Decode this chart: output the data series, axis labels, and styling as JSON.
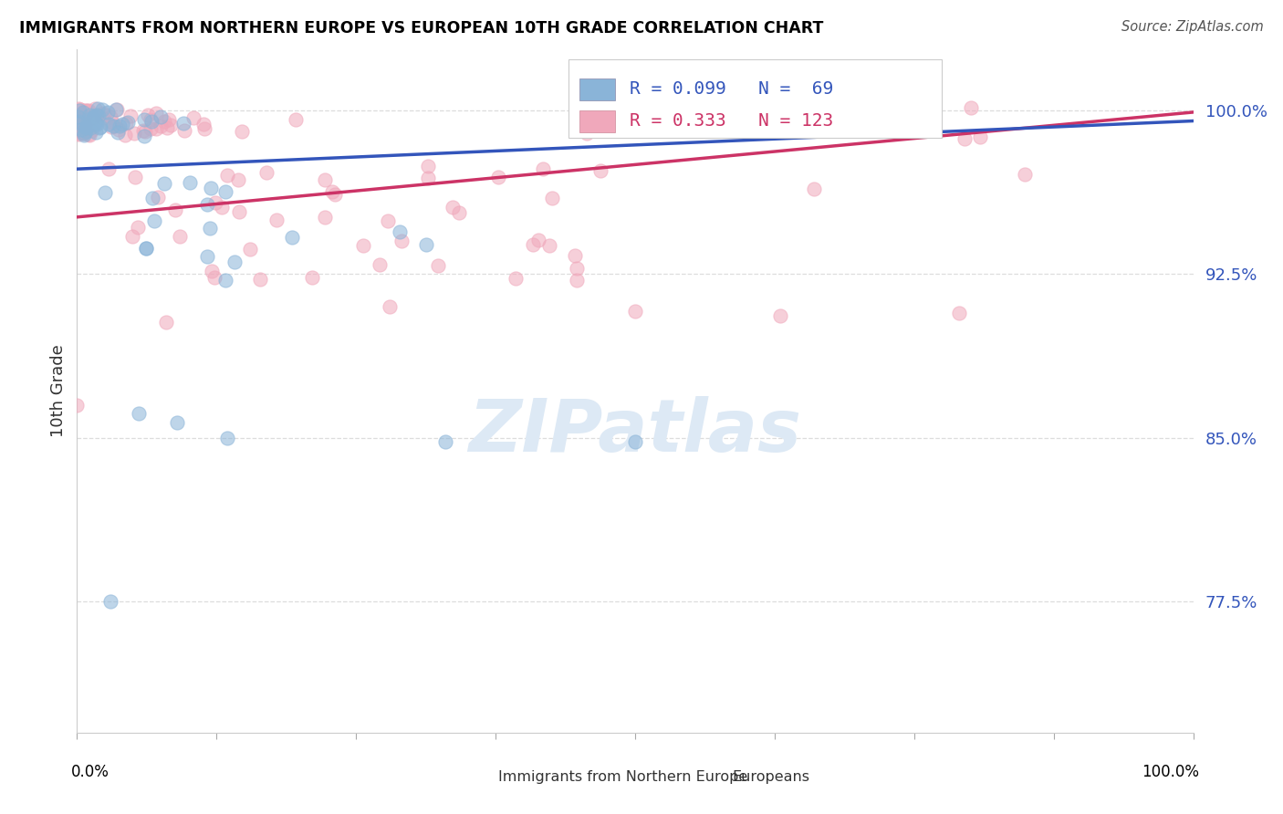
{
  "title": "IMMIGRANTS FROM NORTHERN EUROPE VS EUROPEAN 10TH GRADE CORRELATION CHART",
  "source": "Source: ZipAtlas.com",
  "ylabel": "10th Grade",
  "ytick_labels": [
    "77.5%",
    "85.0%",
    "92.5%",
    "100.0%"
  ],
  "ytick_values": [
    0.775,
    0.85,
    0.925,
    1.0
  ],
  "xlim": [
    0.0,
    1.0
  ],
  "ylim": [
    0.715,
    1.028
  ],
  "legend_blue_label": "Immigrants from Northern Europe",
  "legend_pink_label": "Europeans",
  "r_blue": 0.099,
  "n_blue": 69,
  "r_pink": 0.333,
  "n_pink": 123,
  "blue_color": "#8ab4d8",
  "pink_color": "#f0a8bb",
  "blue_line_color": "#3355bb",
  "pink_line_color": "#cc3366",
  "blue_slope": 0.022,
  "blue_intercept": 0.973,
  "pink_slope": 0.048,
  "pink_intercept": 0.951,
  "watermark_text": "ZIPatlas",
  "watermark_color": "#dde9f5",
  "background_color": "#ffffff",
  "grid_color": "#dddddd"
}
